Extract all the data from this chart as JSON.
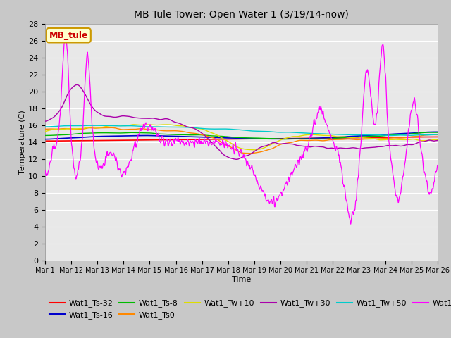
{
  "title": "MB Tule Tower: Open Water 1 (3/19/14-now)",
  "xlabel": "Time",
  "ylabel": "Temperature (C)",
  "ylim": [
    0,
    28
  ],
  "yticks": [
    0,
    2,
    4,
    6,
    8,
    10,
    12,
    14,
    16,
    18,
    20,
    22,
    24,
    26,
    28
  ],
  "xtick_labels": [
    "Mar 1",
    "Mar 12",
    "Mar 13",
    "Mar 14",
    "Mar 15",
    "Mar 16",
    "Mar 17",
    "Mar 18",
    "Mar 19",
    "Mar 20",
    "Mar 21",
    "Mar 22",
    "Mar 23",
    "Mar 24",
    "Mar 25",
    "Mar 26"
  ],
  "legend_label": "MB_tule",
  "series_colors": {
    "Wat1_Ts-32": "#ff0000",
    "Wat1_Ts-16": "#0000cc",
    "Wat1_Ts-8": "#00bb00",
    "Wat1_Ts0": "#ff8800",
    "Wat1_Tw+10": "#dddd00",
    "Wat1_Tw+30": "#aa00aa",
    "Wat1_Tw+50": "#00cccc",
    "Wat1_Tw100": "#ff00ff"
  },
  "fig_bg": "#c8c8c8",
  "plot_bg": "#e8e8e8",
  "grid_color": "#ffffff"
}
